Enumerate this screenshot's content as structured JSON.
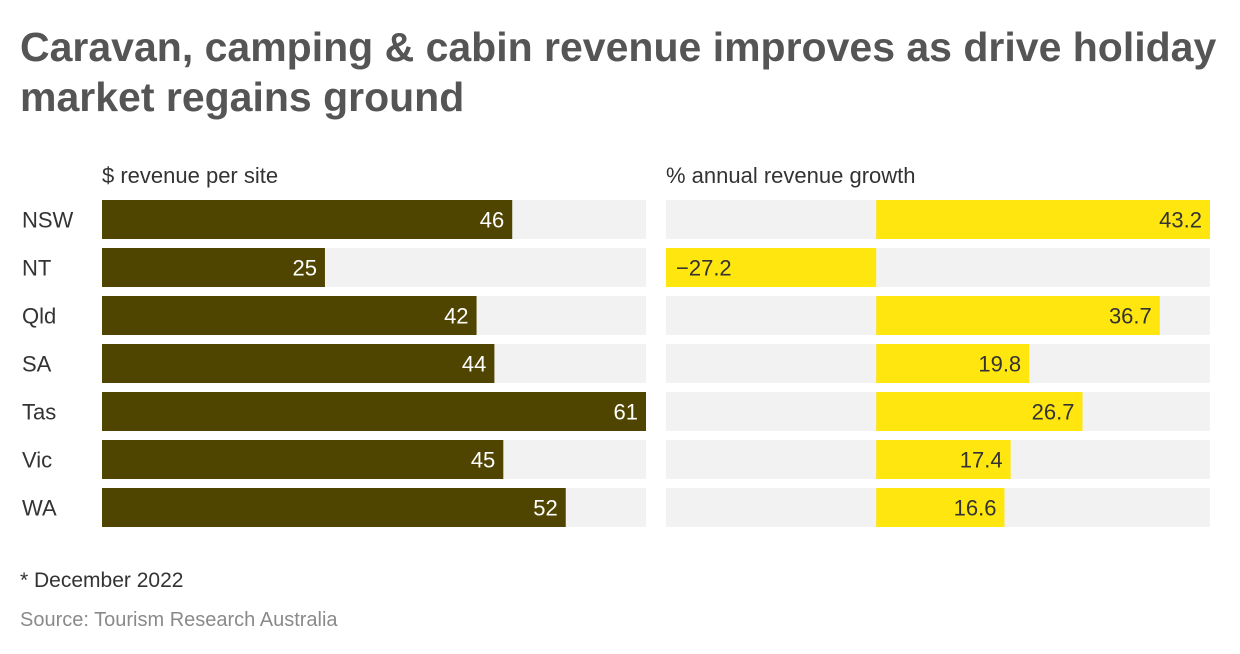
{
  "title": "Caravan, camping & cabin revenue improves as drive holiday market regains ground",
  "footnote": "* December 2022",
  "source": "Source: Tourism Research Australia",
  "colors": {
    "left_bar": "#4f4400",
    "right_bar": "#ffe60f",
    "track": "#f2f2f2",
    "left_label": "#ffffff",
    "right_label": "#333333"
  },
  "chart_data": [
    {
      "type": "bar",
      "orientation": "horizontal",
      "title": "$ revenue per site",
      "categories": [
        "NSW",
        "NT",
        "Qld",
        "SA",
        "Tas",
        "Vic",
        "WA"
      ],
      "values": [
        46,
        25,
        42,
        44,
        61,
        45,
        52
      ],
      "labels": [
        "46",
        "25",
        "42",
        "44",
        "61",
        "45",
        "52"
      ],
      "xlim": [
        0,
        61
      ]
    },
    {
      "type": "bar",
      "orientation": "horizontal",
      "title": "% annual revenue growth",
      "categories": [
        "NSW",
        "NT",
        "Qld",
        "SA",
        "Tas",
        "Vic",
        "WA"
      ],
      "values": [
        43.2,
        -27.2,
        36.7,
        19.8,
        26.7,
        17.4,
        16.6
      ],
      "labels": [
        "43.2",
        "−27.2",
        "36.7",
        "19.8",
        "26.7",
        "17.4",
        "16.6"
      ],
      "xlim": [
        -27.2,
        43.2
      ]
    }
  ]
}
